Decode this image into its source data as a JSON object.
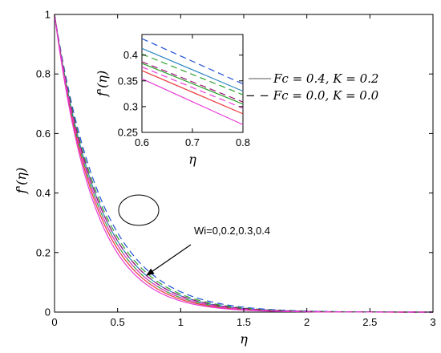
{
  "chart_data": [
    {
      "type": "line",
      "title": "",
      "xlabel": "η",
      "ylabel": "f'(η)",
      "xlim": [
        0,
        3
      ],
      "ylim": [
        0,
        1
      ],
      "xticks": [
        "0",
        "0.5",
        "1",
        "1.5",
        "2",
        "2.5",
        "3"
      ],
      "yticks": [
        "0",
        "0.2",
        "0.4",
        "0.6",
        "0.8",
        "1"
      ],
      "grid": false,
      "legend_position": "right",
      "legend": [
        {
          "label": "Fc = 0.4, K = 0.2",
          "style": "solid"
        },
        {
          "label": "− − Fc = 0.0, K = 0.0",
          "style": "dashed"
        }
      ],
      "annotation": "Wi=0,0.2,0.3,0.4",
      "series": [
        {
          "Wi": 0.0,
          "style": "solid",
          "color": "#2e86c1",
          "decay": 2.5
        },
        {
          "Wi": 0.2,
          "style": "solid",
          "color": "#2ca02c",
          "decay": 2.62
        },
        {
          "Wi": 0.3,
          "style": "solid",
          "color": "#e8373a",
          "decay": 2.74
        },
        {
          "Wi": 0.4,
          "style": "solid",
          "color": "#e83bd6",
          "decay": 2.88
        },
        {
          "Wi": 0.0,
          "style": "dashed",
          "color": "#1f4fd8",
          "decay": 2.28
        },
        {
          "Wi": 0.2,
          "style": "dashed",
          "color": "#2ca02c",
          "decay": 2.4
        },
        {
          "Wi": 0.3,
          "style": "dashed",
          "color": "#9e0e7a",
          "decay": 2.5
        },
        {
          "Wi": 0.4,
          "style": "dashed",
          "color": "#e83bd6",
          "decay": 2.62
        }
      ]
    },
    {
      "type": "line",
      "title": "",
      "xlabel": "η",
      "ylabel": "f'(η)",
      "xlim": [
        0.6,
        0.8
      ],
      "ylim": [
        0.25,
        0.44
      ],
      "xticks": [
        "0.6",
        "0.7",
        "0.8"
      ],
      "yticks": [
        "0.25",
        "0.3",
        "0.35",
        "0.4"
      ],
      "grid": false,
      "series": [
        {
          "Wi": 0.0,
          "style": "dashed",
          "color": "#1f4fd8",
          "x": [
            0.6,
            0.8
          ],
          "y": [
            0.432,
            0.344
          ]
        },
        {
          "Wi": 0.2,
          "style": "dashed",
          "color": "#2ca02c",
          "x": [
            0.6,
            0.8
          ],
          "y": [
            0.402,
            0.323
          ]
        },
        {
          "Wi": 0.0,
          "style": "solid",
          "color": "#2e86c1",
          "x": [
            0.6,
            0.8
          ],
          "y": [
            0.413,
            0.33
          ]
        },
        {
          "Wi": 0.3,
          "style": "dashed",
          "color": "#9e0e7a",
          "x": [
            0.6,
            0.8
          ],
          "y": [
            0.387,
            0.309
          ]
        },
        {
          "Wi": 0.2,
          "style": "solid",
          "color": "#2ca02c",
          "x": [
            0.6,
            0.8
          ],
          "y": [
            0.384,
            0.305
          ]
        },
        {
          "Wi": 0.4,
          "style": "dashed",
          "color": "#e83bd6",
          "x": [
            0.6,
            0.8
          ],
          "y": [
            0.377,
            0.297
          ]
        },
        {
          "Wi": 0.3,
          "style": "solid",
          "color": "#e8373a",
          "x": [
            0.6,
            0.8
          ],
          "y": [
            0.37,
            0.286
          ]
        },
        {
          "Wi": 0.4,
          "style": "solid",
          "color": "#e83bd6",
          "x": [
            0.6,
            0.8
          ],
          "y": [
            0.354,
            0.265
          ]
        }
      ]
    }
  ]
}
